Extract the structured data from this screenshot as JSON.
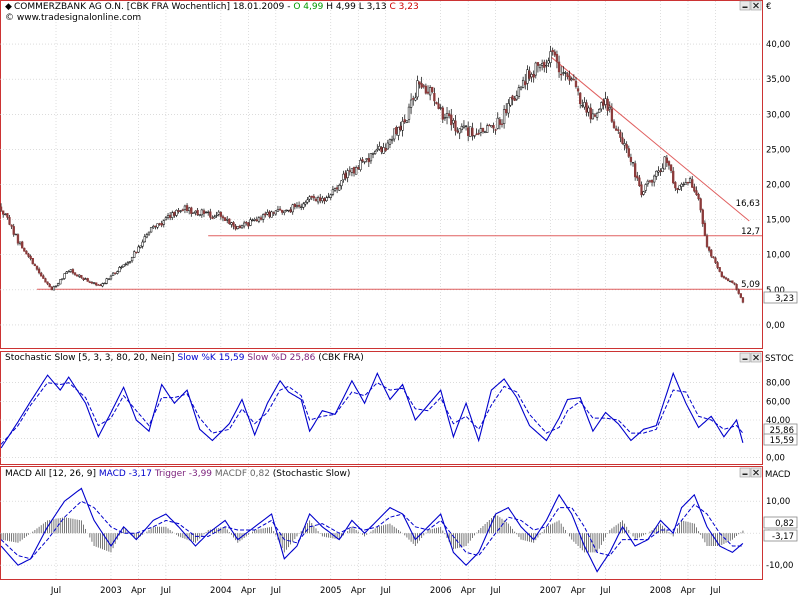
{
  "colors": {
    "up": "#8b3a3a",
    "down": "#000000",
    "stoch_k": "#0000cc",
    "stoch_d": "#0000cc",
    "macd": "#0000cc",
    "trigger": "#0000cc",
    "trendline": "#e06060",
    "grid": "#c8c8c8",
    "frame": "#cc3333"
  },
  "icons": {
    "minimize": "minimize-icon",
    "close": "close-icon"
  },
  "panes": {
    "price": {
      "title_prefix": "COMMERZBANK AG O.N. [CBK FRA  Wochentlich] 18.01.2009 - ",
      "open_label": "O 4,99",
      "high_label": " H 4,99",
      "low_label": " L 3,13",
      "close_label": " C 3,23",
      "watermark": "© www.tradesignalonline.com",
      "currency": "€",
      "last_badge": "3,23",
      "level_labels": [
        "16,63",
        "12,7",
        "5,09"
      ]
    },
    "stoch": {
      "title_prefix": "Stochastic Slow [5, 3, 3, 80, 20, Nein]",
      "k_label": " Slow %K 15,59",
      "d_label": " Slow %D 25,86",
      "title_suffix": " (CBK FRA)",
      "axis_name": "SSTOC",
      "badge_d": "25,86",
      "badge_k": "15,59"
    },
    "macd": {
      "title_prefix": "MACD All [12, 26, 9]",
      "macd_label": " MACD -3,17",
      "trigger_label": " Trigger -3,99",
      "macdf_label": " MACDF 0,82",
      "title_suffix": " (Stochastic Slow)",
      "axis_name": "MACD",
      "badge_macdf": "0,82",
      "badge_macd": "-3,17"
    }
  },
  "chart_data": [
    {
      "type": "candlestick",
      "series": [
        {
          "name": "COMMERZBANK AG O.N."
        }
      ],
      "ylim": [
        -1,
        42
      ],
      "y_ticks": [
        "0,00",
        "5,00",
        "10,00",
        "15,00",
        "20,00",
        "25,00",
        "30,00",
        "35,00",
        "40,00"
      ],
      "y_tick_values": [
        0,
        5,
        10,
        15,
        20,
        25,
        30,
        35,
        40
      ],
      "x_ticks": [
        "Jul",
        "2003",
        "Apr",
        "Jul",
        "2004",
        "Apr",
        "Jul",
        "2005",
        "Apr",
        "Jul",
        "2006",
        "Apr",
        "Jul",
        "2007",
        "Apr",
        "Jul",
        "2008",
        "Apr",
        "Jul"
      ],
      "x_tick_weeks": [
        26,
        52,
        65,
        78,
        104,
        117,
        130,
        156,
        169,
        182,
        208,
        221,
        234,
        260,
        273,
        286,
        312,
        325,
        338
      ],
      "close_anchors": [
        [
          0,
          16.8
        ],
        [
          8,
          12.0
        ],
        [
          18,
          7.5
        ],
        [
          24,
          4.9
        ],
        [
          32,
          7.8
        ],
        [
          40,
          6.5
        ],
        [
          47,
          5.5
        ],
        [
          54,
          7.6
        ],
        [
          60,
          8.8
        ],
        [
          70,
          13.4
        ],
        [
          78,
          15.0
        ],
        [
          86,
          16.7
        ],
        [
          95,
          15.9
        ],
        [
          104,
          15.6
        ],
        [
          110,
          14.0
        ],
        [
          116,
          14.3
        ],
        [
          126,
          15.8
        ],
        [
          136,
          16.3
        ],
        [
          146,
          17.8
        ],
        [
          155,
          18.3
        ],
        [
          162,
          21.0
        ],
        [
          172,
          23.2
        ],
        [
          182,
          25.6
        ],
        [
          192,
          29.8
        ],
        [
          197,
          34.0
        ],
        [
          202,
          33.5
        ],
        [
          210,
          29.5
        ],
        [
          218,
          27.8
        ],
        [
          226,
          27.4
        ],
        [
          236,
          28.9
        ],
        [
          244,
          33.2
        ],
        [
          250,
          35.8
        ],
        [
          257,
          37.4
        ],
        [
          261,
          38.1
        ],
        [
          265,
          36.5
        ],
        [
          272,
          34.0
        ],
        [
          276,
          30.8
        ],
        [
          281,
          29.8
        ],
        [
          286,
          31.5
        ],
        [
          293,
          26.4
        ],
        [
          298,
          23.7
        ],
        [
          303,
          18.7
        ],
        [
          308,
          20.7
        ],
        [
          314,
          23.5
        ],
        [
          320,
          19.4
        ],
        [
          326,
          20.8
        ],
        [
          330,
          18.4
        ],
        [
          334,
          11.0
        ],
        [
          338,
          8.8
        ],
        [
          342,
          6.5
        ],
        [
          347,
          5.8
        ],
        [
          351,
          3.2
        ]
      ],
      "total_weeks": 352,
      "trendline": {
        "from": [
          260,
          38.2
        ],
        "to": [
          354,
          14.8
        ]
      },
      "support_lines": [
        {
          "value": 12.7,
          "from_week": 98
        },
        {
          "value": 5.09,
          "from_week": 17
        }
      ],
      "last_close": 3.23
    },
    {
      "type": "line",
      "series": [
        {
          "name": "Slow %K",
          "style": "solid"
        },
        {
          "name": "Slow %D",
          "style": "dashed"
        }
      ],
      "ylim": [
        -5,
        100
      ],
      "y_ticks": [
        "0,00",
        "20,00",
        "40,00",
        "60,00",
        "80,00"
      ],
      "y_tick_values": [
        0,
        20,
        40,
        60,
        80
      ],
      "k_last": 15.59,
      "d_last": 25.86,
      "k_anchors": [
        [
          0,
          10
        ],
        [
          8,
          38
        ],
        [
          14,
          60
        ],
        [
          22,
          88
        ],
        [
          28,
          72
        ],
        [
          32,
          86
        ],
        [
          40,
          58
        ],
        [
          46,
          22
        ],
        [
          52,
          48
        ],
        [
          58,
          75
        ],
        [
          64,
          40
        ],
        [
          70,
          28
        ],
        [
          76,
          78
        ],
        [
          82,
          58
        ],
        [
          88,
          72
        ],
        [
          94,
          30
        ],
        [
          100,
          18
        ],
        [
          108,
          36
        ],
        [
          114,
          62
        ],
        [
          120,
          24
        ],
        [
          126,
          58
        ],
        [
          132,
          82
        ],
        [
          136,
          70
        ],
        [
          142,
          62
        ],
        [
          146,
          28
        ],
        [
          152,
          50
        ],
        [
          158,
          46
        ],
        [
          166,
          82
        ],
        [
          172,
          58
        ],
        [
          178,
          90
        ],
        [
          184,
          62
        ],
        [
          190,
          78
        ],
        [
          196,
          40
        ],
        [
          202,
          56
        ],
        [
          208,
          72
        ],
        [
          214,
          22
        ],
        [
          220,
          58
        ],
        [
          226,
          18
        ],
        [
          232,
          72
        ],
        [
          238,
          84
        ],
        [
          244,
          64
        ],
        [
          250,
          34
        ],
        [
          258,
          18
        ],
        [
          264,
          42
        ],
        [
          268,
          62
        ],
        [
          274,
          64
        ],
        [
          280,
          28
        ],
        [
          286,
          48
        ],
        [
          292,
          36
        ],
        [
          298,
          18
        ],
        [
          304,
          30
        ],
        [
          310,
          34
        ],
        [
          318,
          90
        ],
        [
          324,
          58
        ],
        [
          330,
          32
        ],
        [
          336,
          44
        ],
        [
          342,
          22
        ],
        [
          348,
          40
        ],
        [
          351,
          15.6
        ]
      ],
      "d_anchors": [
        [
          0,
          14
        ],
        [
          8,
          34
        ],
        [
          14,
          56
        ],
        [
          22,
          80
        ],
        [
          28,
          78
        ],
        [
          32,
          80
        ],
        [
          40,
          64
        ],
        [
          46,
          34
        ],
        [
          52,
          42
        ],
        [
          58,
          66
        ],
        [
          64,
          50
        ],
        [
          70,
          34
        ],
        [
          76,
          64
        ],
        [
          82,
          64
        ],
        [
          88,
          68
        ],
        [
          94,
          42
        ],
        [
          100,
          26
        ],
        [
          108,
          30
        ],
        [
          114,
          52
        ],
        [
          120,
          36
        ],
        [
          126,
          48
        ],
        [
          132,
          72
        ],
        [
          136,
          76
        ],
        [
          142,
          66
        ],
        [
          146,
          40
        ],
        [
          152,
          44
        ],
        [
          158,
          46
        ],
        [
          166,
          70
        ],
        [
          172,
          66
        ],
        [
          178,
          80
        ],
        [
          184,
          72
        ],
        [
          190,
          74
        ],
        [
          196,
          52
        ],
        [
          202,
          50
        ],
        [
          208,
          64
        ],
        [
          214,
          36
        ],
        [
          220,
          44
        ],
        [
          226,
          30
        ],
        [
          232,
          56
        ],
        [
          238,
          76
        ],
        [
          244,
          70
        ],
        [
          250,
          46
        ],
        [
          258,
          26
        ],
        [
          264,
          32
        ],
        [
          268,
          50
        ],
        [
          274,
          60
        ],
        [
          280,
          42
        ],
        [
          286,
          42
        ],
        [
          292,
          40
        ],
        [
          298,
          26
        ],
        [
          304,
          26
        ],
        [
          310,
          30
        ],
        [
          318,
          72
        ],
        [
          324,
          70
        ],
        [
          330,
          44
        ],
        [
          336,
          40
        ],
        [
          342,
          30
        ],
        [
          348,
          34
        ],
        [
          351,
          25.9
        ]
      ]
    },
    {
      "type": "line",
      "series": [
        {
          "name": "MACD",
          "style": "solid"
        },
        {
          "name": "Trigger",
          "style": "dashed"
        },
        {
          "name": "MACDF",
          "style": "histogram"
        }
      ],
      "ylim": [
        -14,
        16
      ],
      "y_ticks": [
        "-10,00",
        "0,00",
        "10,00"
      ],
      "y_tick_values": [
        -10,
        0,
        10
      ],
      "macd_last": -3.17,
      "trigger_last": -3.99,
      "macdf_last": 0.82,
      "macd_anchors": [
        [
          0,
          -4
        ],
        [
          8,
          -10
        ],
        [
          14,
          -8
        ],
        [
          22,
          2
        ],
        [
          30,
          10
        ],
        [
          38,
          14
        ],
        [
          44,
          4
        ],
        [
          52,
          -4
        ],
        [
          58,
          2
        ],
        [
          64,
          -2
        ],
        [
          72,
          4
        ],
        [
          78,
          6
        ],
        [
          84,
          2
        ],
        [
          92,
          -4
        ],
        [
          98,
          0
        ],
        [
          106,
          4
        ],
        [
          112,
          -2
        ],
        [
          120,
          2
        ],
        [
          128,
          6
        ],
        [
          134,
          -8
        ],
        [
          140,
          -4
        ],
        [
          146,
          6
        ],
        [
          152,
          2
        ],
        [
          160,
          -2
        ],
        [
          166,
          4
        ],
        [
          172,
          0
        ],
        [
          178,
          4
        ],
        [
          184,
          8
        ],
        [
          190,
          6
        ],
        [
          196,
          -2
        ],
        [
          202,
          2
        ],
        [
          208,
          6
        ],
        [
          214,
          -6
        ],
        [
          220,
          -10
        ],
        [
          226,
          -6
        ],
        [
          234,
          6
        ],
        [
          240,
          8
        ],
        [
          246,
          2
        ],
        [
          252,
          -2
        ],
        [
          258,
          4
        ],
        [
          264,
          12
        ],
        [
          270,
          6
        ],
        [
          276,
          -4
        ],
        [
          282,
          -12
        ],
        [
          288,
          -6
        ],
        [
          294,
          2
        ],
        [
          300,
          -4
        ],
        [
          306,
          -2
        ],
        [
          312,
          4
        ],
        [
          318,
          0
        ],
        [
          322,
          8
        ],
        [
          328,
          12
        ],
        [
          334,
          2
        ],
        [
          340,
          -4
        ],
        [
          346,
          -6
        ],
        [
          351,
          -3.2
        ]
      ],
      "trigger_anchors": [
        [
          0,
          -2
        ],
        [
          8,
          -7
        ],
        [
          14,
          -8
        ],
        [
          22,
          -2
        ],
        [
          30,
          5
        ],
        [
          38,
          10
        ],
        [
          44,
          8
        ],
        [
          52,
          2
        ],
        [
          58,
          0
        ],
        [
          64,
          0
        ],
        [
          72,
          2
        ],
        [
          78,
          4
        ],
        [
          84,
          3
        ],
        [
          92,
          -1
        ],
        [
          98,
          -1
        ],
        [
          106,
          2
        ],
        [
          112,
          1
        ],
        [
          120,
          1
        ],
        [
          128,
          4
        ],
        [
          134,
          -2
        ],
        [
          140,
          -3
        ],
        [
          146,
          2
        ],
        [
          152,
          3
        ],
        [
          160,
          0
        ],
        [
          166,
          2
        ],
        [
          172,
          1
        ],
        [
          178,
          2
        ],
        [
          184,
          5
        ],
        [
          190,
          6
        ],
        [
          196,
          2
        ],
        [
          202,
          1
        ],
        [
          208,
          4
        ],
        [
          214,
          -1
        ],
        [
          220,
          -6
        ],
        [
          226,
          -7
        ],
        [
          234,
          0
        ],
        [
          240,
          5
        ],
        [
          246,
          4
        ],
        [
          252,
          1
        ],
        [
          258,
          2
        ],
        [
          264,
          8
        ],
        [
          270,
          8
        ],
        [
          276,
          2
        ],
        [
          282,
          -6
        ],
        [
          288,
          -7
        ],
        [
          294,
          -2
        ],
        [
          300,
          -2
        ],
        [
          306,
          -2
        ],
        [
          312,
          1
        ],
        [
          318,
          1
        ],
        [
          322,
          4
        ],
        [
          328,
          9
        ],
        [
          334,
          6
        ],
        [
          340,
          0
        ],
        [
          346,
          -4
        ],
        [
          351,
          -4.0
        ]
      ]
    }
  ]
}
